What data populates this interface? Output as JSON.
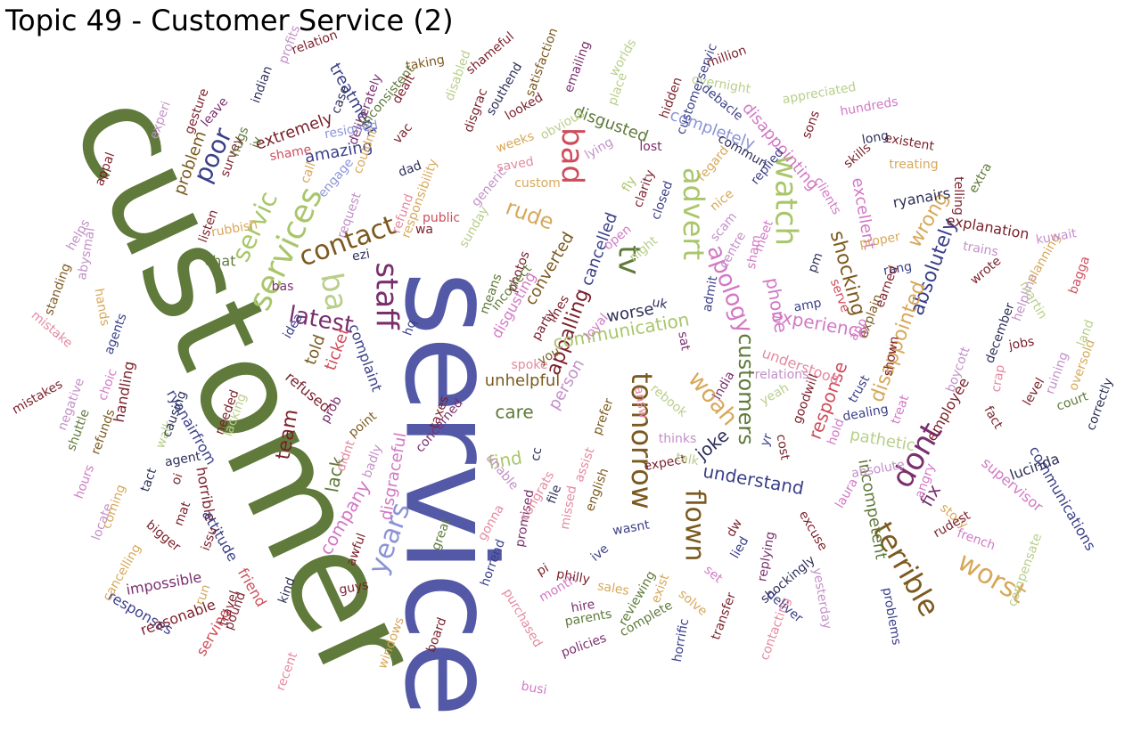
{
  "title": "Topic 49 - Customer Service (2)",
  "palette": {
    "olive": "#5f7a3a",
    "indigo": "#5359a6",
    "lime": "#a9c66a",
    "sage": "#b8cf8a",
    "brown": "#7c5a1f",
    "tan": "#d7a85a",
    "plum": "#7a2f6e",
    "orchid": "#d279c5",
    "pink": "#e48aa0",
    "red": "#cf4c5a",
    "maroon": "#7a1f2a",
    "slate": "#3a3f88",
    "periwinkle": "#8c93d6",
    "mauve": "#c390c8",
    "dark": "#2c2f5a"
  },
  "words": [
    {
      "text": "customer",
      "color": "olive"
    },
    {
      "text": "service",
      "color": "indigo"
    },
    {
      "text": "services",
      "color": "lime"
    },
    {
      "text": "advert",
      "color": "lime"
    },
    {
      "text": "watch",
      "color": "lime"
    },
    {
      "text": "tomorrow",
      "color": "brown"
    },
    {
      "text": "flown",
      "color": "brown"
    },
    {
      "text": "terrible",
      "color": "brown"
    },
    {
      "text": "worst",
      "color": "tan"
    },
    {
      "text": "dont",
      "color": "plum"
    },
    {
      "text": "staff",
      "color": "plum"
    },
    {
      "text": "bad",
      "color": "red"
    },
    {
      "text": "contact",
      "color": "brown"
    },
    {
      "text": "ba",
      "color": "sage"
    },
    {
      "text": "latest",
      "color": "plum"
    },
    {
      "text": "years",
      "color": "periwinkle"
    },
    {
      "text": "servic",
      "color": "lime"
    },
    {
      "text": "poor",
      "color": "slate"
    },
    {
      "text": "tv",
      "color": "olive"
    },
    {
      "text": "apology",
      "color": "orchid"
    },
    {
      "text": "woah",
      "color": "tan"
    },
    {
      "text": "customers",
      "color": "olive"
    },
    {
      "text": "appalling",
      "color": "maroon"
    },
    {
      "text": "rude",
      "color": "tan"
    },
    {
      "text": "shocking",
      "color": "brown"
    },
    {
      "text": "absolutely",
      "color": "slate"
    },
    {
      "text": "wrong",
      "color": "tan"
    },
    {
      "text": "disappointed",
      "color": "tan"
    },
    {
      "text": "response",
      "color": "red"
    },
    {
      "text": "understand",
      "color": "slate"
    },
    {
      "text": "communication",
      "color": "lime"
    },
    {
      "text": "experience",
      "color": "orchid"
    },
    {
      "text": "phone",
      "color": "orchid"
    },
    {
      "text": "joke",
      "color": "dark"
    },
    {
      "text": "fix",
      "color": "plum"
    },
    {
      "text": "find",
      "color": "lime"
    },
    {
      "text": "company",
      "color": "orchid"
    },
    {
      "text": "team",
      "color": "maroon"
    },
    {
      "text": "care",
      "color": "olive"
    },
    {
      "text": "lack",
      "color": "olive"
    },
    {
      "text": "completely",
      "color": "periwinkle"
    },
    {
      "text": "disappointing",
      "color": "orchid"
    },
    {
      "text": "excellent",
      "color": "orchid"
    },
    {
      "text": "incompetent",
      "color": "olive"
    },
    {
      "text": "unhelpful",
      "color": "brown"
    },
    {
      "text": "pathetic",
      "color": "sage"
    },
    {
      "text": "disgraceful",
      "color": "orchid"
    },
    {
      "text": "cancelled",
      "color": "slate"
    },
    {
      "text": "disgusted",
      "color": "olive"
    },
    {
      "text": "amazing",
      "color": "slate"
    },
    {
      "text": "extremely",
      "color": "maroon"
    },
    {
      "text": "problem",
      "color": "brown"
    },
    {
      "text": "treatment",
      "color": "slate"
    },
    {
      "text": "chat",
      "color": "olive"
    },
    {
      "text": "told",
      "color": "brown"
    },
    {
      "text": "ticket",
      "color": "red"
    },
    {
      "text": "refused",
      "color": "maroon"
    },
    {
      "text": "complaint",
      "color": "slate"
    },
    {
      "text": "person",
      "color": "mauve"
    },
    {
      "text": "worse",
      "color": "dark"
    },
    {
      "text": "converted",
      "color": "brown"
    },
    {
      "text": "disgusting",
      "color": "orchid"
    },
    {
      "text": "ryanairs",
      "color": "dark"
    },
    {
      "text": "explanation",
      "color": "maroon"
    },
    {
      "text": "understood",
      "color": "pink"
    },
    {
      "text": "employee",
      "color": "maroon"
    },
    {
      "text": "supervisor",
      "color": "orchid"
    },
    {
      "text": "communications",
      "color": "slate"
    },
    {
      "text": "lucinda",
      "color": "dark"
    },
    {
      "text": "handling",
      "color": "maroon"
    },
    {
      "text": "ryanairfrom",
      "color": "slate"
    },
    {
      "text": "horrible",
      "color": "maroon"
    },
    {
      "text": "attitude",
      "color": "slate"
    },
    {
      "text": "friend",
      "color": "red"
    },
    {
      "text": "impossible",
      "color": "plum"
    },
    {
      "text": "responses",
      "color": "slate"
    },
    {
      "text": "reasonable",
      "color": "maroon"
    },
    {
      "text": "serving",
      "color": "red"
    },
    {
      "text": "travel",
      "color": "maroon"
    },
    {
      "text": "recent",
      "color": "pink"
    },
    {
      "text": "windows",
      "color": "tan"
    },
    {
      "text": "board",
      "color": "maroon"
    },
    {
      "text": "busi",
      "color": "orchid"
    },
    {
      "text": "purchased",
      "color": "pink"
    },
    {
      "text": "policies",
      "color": "plum"
    },
    {
      "text": "parents",
      "color": "olive"
    },
    {
      "text": "complete",
      "color": "olive"
    },
    {
      "text": "horrific",
      "color": "slate"
    },
    {
      "text": "transfer",
      "color": "maroon"
    },
    {
      "text": "contacting",
      "color": "pink"
    },
    {
      "text": "problems",
      "color": "slate"
    },
    {
      "text": "french",
      "color": "orchid"
    },
    {
      "text": "compensate",
      "color": "sage"
    },
    {
      "text": "story",
      "color": "tan"
    },
    {
      "text": "rudest",
      "color": "maroon"
    },
    {
      "text": "angry",
      "color": "orchid"
    },
    {
      "text": "absolute",
      "color": "mauve"
    },
    {
      "text": "laura",
      "color": "orchid"
    },
    {
      "text": "excuse",
      "color": "maroon"
    },
    {
      "text": "replying",
      "color": "plum"
    },
    {
      "text": "deliver",
      "color": "slate"
    },
    {
      "text": "shockingly",
      "color": "dark"
    },
    {
      "text": "yesterday",
      "color": "mauve"
    },
    {
      "text": "lied",
      "color": "slate"
    },
    {
      "text": "dw",
      "color": "maroon"
    },
    {
      "text": "set",
      "color": "orchid"
    },
    {
      "text": "solve",
      "color": "tan"
    },
    {
      "text": "expect",
      "color": "maroon"
    },
    {
      "text": "talk",
      "color": "sage"
    },
    {
      "text": "thinks",
      "color": "mauve"
    },
    {
      "text": "wasnt",
      "color": "slate"
    },
    {
      "text": "ive",
      "color": "slate"
    },
    {
      "text": "sales",
      "color": "tan"
    },
    {
      "text": "reviewing",
      "color": "olive"
    },
    {
      "text": "exist",
      "color": "tan"
    },
    {
      "text": "month",
      "color": "orchid"
    },
    {
      "text": "philly",
      "color": "maroon"
    },
    {
      "text": "pi",
      "color": "maroon"
    },
    {
      "text": "hire",
      "color": "plum"
    },
    {
      "text": "missed",
      "color": "pink"
    },
    {
      "text": "promised",
      "color": "plum"
    },
    {
      "text": "gonna",
      "color": "pink"
    },
    {
      "text": "horrend",
      "color": "slate"
    },
    {
      "text": "great",
      "color": "olive"
    },
    {
      "text": "unable",
      "color": "mauve"
    },
    {
      "text": "congrats",
      "color": "pink"
    },
    {
      "text": "cc",
      "color": "dark"
    },
    {
      "text": "file",
      "color": "dark"
    },
    {
      "text": "english",
      "color": "brown"
    },
    {
      "text": "assist",
      "color": "pink"
    },
    {
      "text": "taxes",
      "color": "maroon"
    },
    {
      "text": "concerned",
      "color": "plum"
    },
    {
      "text": "spoke",
      "color": "pink"
    },
    {
      "text": "prefer",
      "color": "brown"
    },
    {
      "text": "answ",
      "color": "pink"
    },
    {
      "text": "sat",
      "color": "plum"
    },
    {
      "text": "rebook",
      "color": "sage"
    },
    {
      "text": "india",
      "color": "plum"
    },
    {
      "text": "yeah",
      "color": "sage"
    },
    {
      "text": "relations",
      "color": "mauve"
    },
    {
      "text": "yr",
      "color": "slate"
    },
    {
      "text": "cost",
      "color": "maroon"
    },
    {
      "text": "goodwill",
      "color": "maroon"
    },
    {
      "text": "hold",
      "color": "orchid"
    },
    {
      "text": "dealing",
      "color": "slate"
    },
    {
      "text": "trust",
      "color": "slate"
    },
    {
      "text": "treat",
      "color": "orchid"
    },
    {
      "text": "shown",
      "color": "maroon"
    },
    {
      "text": "fact",
      "color": "maroon"
    },
    {
      "text": "crap",
      "color": "pink"
    },
    {
      "text": "level",
      "color": "maroon"
    },
    {
      "text": "court",
      "color": "olive"
    },
    {
      "text": "correctly",
      "color": "dark"
    },
    {
      "text": "oversold",
      "color": "tan"
    },
    {
      "text": "land",
      "color": "sage"
    },
    {
      "text": "ruining",
      "color": "mauve"
    },
    {
      "text": "jobs",
      "color": "maroon"
    },
    {
      "text": "helpline",
      "color": "mauve"
    },
    {
      "text": "martin",
      "color": "sage"
    },
    {
      "text": "december",
      "color": "dark"
    },
    {
      "text": "boycott",
      "color": "mauve"
    },
    {
      "text": "explain",
      "color": "brown"
    },
    {
      "text": "wrote",
      "color": "maroon"
    },
    {
      "text": "planning",
      "color": "tan"
    },
    {
      "text": "bagga",
      "color": "red"
    },
    {
      "text": "kuwait",
      "color": "mauve"
    },
    {
      "text": "trains",
      "color": "mauve"
    },
    {
      "text": "telling",
      "color": "maroon"
    },
    {
      "text": "extra",
      "color": "olive"
    },
    {
      "text": "proper",
      "color": "tan"
    },
    {
      "text": "rang",
      "color": "slate"
    },
    {
      "text": "earned",
      "color": "maroon"
    },
    {
      "text": "app",
      "color": "orchid"
    },
    {
      "text": "serve",
      "color": "red"
    },
    {
      "text": "amp",
      "color": "slate"
    },
    {
      "text": "pm",
      "color": "dark"
    },
    {
      "text": "clients",
      "color": "orchid"
    },
    {
      "text": "skills",
      "color": "maroon"
    },
    {
      "text": "treating",
      "color": "tan"
    },
    {
      "text": "existent",
      "color": "maroon"
    },
    {
      "text": "long",
      "color": "dark"
    },
    {
      "text": "hundreds",
      "color": "orchid"
    },
    {
      "text": "sons",
      "color": "maroon"
    },
    {
      "text": "appreciated",
      "color": "sage"
    },
    {
      "text": "overnight",
      "color": "sage"
    },
    {
      "text": "million",
      "color": "maroon"
    },
    {
      "text": "customerservic",
      "color": "slate"
    },
    {
      "text": "hidden",
      "color": "maroon"
    },
    {
      "text": "debacle",
      "color": "slate"
    },
    {
      "text": "commun",
      "color": "dark"
    },
    {
      "text": "replied",
      "color": "slate"
    },
    {
      "text": "regard",
      "color": "tan"
    },
    {
      "text": "meet",
      "color": "orchid"
    },
    {
      "text": "sham",
      "color": "orchid"
    },
    {
      "text": "scam",
      "color": "mauve"
    },
    {
      "text": "nice",
      "color": "tan"
    },
    {
      "text": "centre",
      "color": "mauve"
    },
    {
      "text": "admit",
      "color": "slate"
    },
    {
      "text": "uk",
      "color": "dark"
    },
    {
      "text": "loyal",
      "color": "orchid"
    },
    {
      "text": "lines",
      "color": "maroon"
    },
    {
      "text": "photos",
      "color": "maroon"
    },
    {
      "text": "party",
      "color": "maroon"
    },
    {
      "text": "means",
      "color": "olive"
    },
    {
      "text": "open",
      "color": "orchid"
    },
    {
      "text": "night",
      "color": "sage"
    },
    {
      "text": "fly",
      "color": "lime"
    },
    {
      "text": "clarity",
      "color": "maroon"
    },
    {
      "text": "closed",
      "color": "slate"
    },
    {
      "text": "lost",
      "color": "plum"
    },
    {
      "text": "lying",
      "color": "mauve"
    },
    {
      "text": "obvious",
      "color": "sage"
    },
    {
      "text": "custom",
      "color": "tan"
    },
    {
      "text": "weeks",
      "color": "tan"
    },
    {
      "text": "saved",
      "color": "pink"
    },
    {
      "text": "disgrac",
      "color": "maroon"
    },
    {
      "text": "generic",
      "color": "mauve"
    },
    {
      "text": "sunday",
      "color": "sage"
    },
    {
      "text": "public",
      "color": "red"
    },
    {
      "text": "wa",
      "color": "maroon"
    },
    {
      "text": "responsibility",
      "color": "tan"
    },
    {
      "text": "dad",
      "color": "dark"
    },
    {
      "text": "refund",
      "color": "pink"
    },
    {
      "text": "ezi",
      "color": "dark"
    },
    {
      "text": "request",
      "color": "mauve"
    },
    {
      "text": "couldnt",
      "color": "tan"
    },
    {
      "text": "engage",
      "color": "periwinkle"
    },
    {
      "text": "call",
      "color": "tan"
    },
    {
      "text": "shame",
      "color": "red"
    },
    {
      "text": "rubbish",
      "color": "tan"
    },
    {
      "text": "listen",
      "color": "maroon"
    },
    {
      "text": "bas",
      "color": "plum"
    },
    {
      "text": "idea",
      "color": "slate"
    },
    {
      "text": "prob",
      "color": "plum"
    },
    {
      "text": "point",
      "color": "brown"
    },
    {
      "text": "didnt",
      "color": "pink"
    },
    {
      "text": "badly",
      "color": "mauve"
    },
    {
      "text": "awful",
      "color": "maroon"
    },
    {
      "text": "guys",
      "color": "maroon"
    },
    {
      "text": "kind",
      "color": "dark"
    },
    {
      "text": "pound",
      "color": "maroon"
    },
    {
      "text": "run",
      "color": "tan"
    },
    {
      "text": "issu",
      "color": "maroon"
    },
    {
      "text": "mat",
      "color": "maroon"
    },
    {
      "text": "oi",
      "color": "maroon"
    },
    {
      "text": "tact",
      "color": "dark"
    },
    {
      "text": "walk",
      "color": "sage"
    },
    {
      "text": "agent",
      "color": "dark"
    },
    {
      "text": "bigger",
      "color": "maroon"
    },
    {
      "text": "locate",
      "color": "mauve"
    },
    {
      "text": "hours",
      "color": "orchid"
    },
    {
      "text": "cancelling",
      "color": "tan"
    },
    {
      "text": "coming",
      "color": "tan"
    },
    {
      "text": "shuttle",
      "color": "olive"
    },
    {
      "text": "negative",
      "color": "mauve"
    },
    {
      "text": "refunds",
      "color": "brown"
    },
    {
      "text": "choic",
      "color": "orchid"
    },
    {
      "text": "mistake",
      "color": "pink"
    },
    {
      "text": "mistakes",
      "color": "maroon"
    },
    {
      "text": "standing",
      "color": "brown"
    },
    {
      "text": "agents",
      "color": "slate"
    },
    {
      "text": "hands",
      "color": "tan"
    },
    {
      "text": "abysmal",
      "color": "mauve"
    },
    {
      "text": "helps",
      "color": "mauve"
    },
    {
      "text": "appal",
      "color": "maroon"
    },
    {
      "text": "experi",
      "color": "mauve"
    },
    {
      "text": "gesture",
      "color": "maroon"
    },
    {
      "text": "leave",
      "color": "plum"
    },
    {
      "text": "survey",
      "color": "maroon"
    },
    {
      "text": "hugs",
      "color": "olive"
    },
    {
      "text": "indian",
      "color": "dark"
    },
    {
      "text": "profits",
      "color": "mauve"
    },
    {
      "text": "relation",
      "color": "maroon"
    },
    {
      "text": "case",
      "color": "dark"
    },
    {
      "text": "deliberately",
      "color": "plum"
    },
    {
      "text": "resigned",
      "color": "periwinkle"
    },
    {
      "text": "inconsistent",
      "color": "olive"
    },
    {
      "text": "dealt",
      "color": "maroon"
    },
    {
      "text": "vac",
      "color": "maroon"
    },
    {
      "text": "taking",
      "color": "brown"
    },
    {
      "text": "disabled",
      "color": "sage"
    },
    {
      "text": "shameful",
      "color": "maroon"
    },
    {
      "text": "southend",
      "color": "dark"
    },
    {
      "text": "looked",
      "color": "maroon"
    },
    {
      "text": "satisfaction",
      "color": "brown"
    },
    {
      "text": "emailing",
      "color": "plum"
    },
    {
      "text": "place",
      "color": "sage"
    },
    {
      "text": "worlds",
      "color": "sage"
    },
    {
      "text": "causing",
      "color": "dark"
    },
    {
      "text": "lacking",
      "color": "sage"
    },
    {
      "text": "needed",
      "color": "maroon"
    },
    {
      "text": "incorrect",
      "color": "olive"
    },
    {
      "text": "you",
      "color": "brown"
    },
    {
      "text": "hq",
      "color": "slate"
    },
    {
      "text": "iv",
      "color": "olive"
    },
    {
      "text": "e.",
      "color": "orchid"
    },
    {
      "text": "vie",
      "color": "maroon"
    },
    {
      "text": "rul",
      "color": "dark"
    },
    {
      "text": "c",
      "color": "slate"
    }
  ]
}
